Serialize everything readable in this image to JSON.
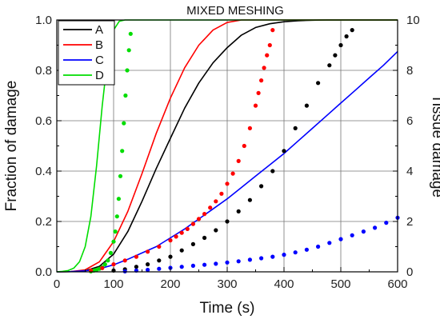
{
  "chart_data": {
    "type": "line",
    "title": "MIXED MESHING",
    "xlabel": "Time (s)",
    "ylabel": "Fraction of damage",
    "y2label": "Tissue damage",
    "xlim": [
      0,
      600
    ],
    "ylim": [
      0,
      1.0
    ],
    "y2lim": [
      0,
      10
    ],
    "xticks": [
      "0",
      "100",
      "200",
      "300",
      "400",
      "500",
      "600"
    ],
    "yticks": [
      "0.0",
      "0.2",
      "0.4",
      "0.6",
      "0.8",
      "1.0"
    ],
    "y2ticks": [
      "0",
      "2",
      "4",
      "6",
      "8",
      "10"
    ],
    "grid": true,
    "legend_position": "top-left",
    "series": [
      {
        "name": "A",
        "color": "#000000",
        "axis": "left",
        "style": "line",
        "x": [
          0,
          25,
          50,
          75,
          100,
          125,
          150,
          175,
          200,
          225,
          250,
          275,
          300,
          325,
          350,
          375,
          400,
          425,
          450,
          475,
          500,
          525,
          550,
          575,
          600
        ],
        "y": [
          0,
          0.001,
          0.004,
          0.022,
          0.07,
          0.16,
          0.28,
          0.41,
          0.53,
          0.65,
          0.75,
          0.83,
          0.89,
          0.94,
          0.97,
          0.985,
          0.993,
          0.997,
          0.999,
          1.0,
          1.0,
          1.0,
          1.0,
          1.0,
          1.0
        ]
      },
      {
        "name": "B",
        "color": "#ff0000",
        "axis": "left",
        "style": "line",
        "x": [
          0,
          25,
          50,
          75,
          100,
          125,
          150,
          175,
          200,
          225,
          250,
          275,
          300,
          325,
          350,
          375,
          400,
          425,
          450,
          475,
          500,
          525,
          550,
          575,
          600
        ],
        "y": [
          0,
          0.001,
          0.008,
          0.04,
          0.12,
          0.24,
          0.39,
          0.55,
          0.69,
          0.81,
          0.9,
          0.96,
          0.99,
          1.0,
          1.0,
          1.0,
          1.0,
          1.0,
          1.0,
          1.0,
          1.0,
          1.0,
          1.0,
          1.0,
          1.0
        ]
      },
      {
        "name": "C",
        "color": "#0000ff",
        "axis": "left",
        "style": "line",
        "x": [
          0,
          25,
          50,
          75,
          100,
          125,
          150,
          175,
          200,
          225,
          250,
          275,
          300,
          325,
          350,
          375,
          400,
          425,
          450,
          475,
          500,
          525,
          550,
          575,
          600
        ],
        "y": [
          0,
          0.001,
          0.004,
          0.012,
          0.028,
          0.05,
          0.075,
          0.1,
          0.135,
          0.17,
          0.21,
          0.25,
          0.29,
          0.335,
          0.38,
          0.425,
          0.47,
          0.52,
          0.57,
          0.62,
          0.67,
          0.72,
          0.77,
          0.82,
          0.875
        ]
      },
      {
        "name": "D",
        "color": "#00dd00",
        "axis": "left",
        "style": "line",
        "x": [
          0,
          10,
          20,
          30,
          40,
          50,
          60,
          70,
          80,
          90,
          100,
          110,
          120,
          130,
          140,
          150,
          200,
          300,
          400,
          500,
          600
        ],
        "y": [
          0,
          0.002,
          0.005,
          0.015,
          0.04,
          0.1,
          0.22,
          0.42,
          0.66,
          0.86,
          0.96,
          0.995,
          1.0,
          1.0,
          1.0,
          1.0,
          1.0,
          1.0,
          1.0,
          1.0,
          1.0
        ]
      },
      {
        "name": "",
        "color": "#00dd00",
        "axis": "right",
        "style": "dots",
        "x": [
          60,
          65,
          70,
          75,
          80,
          85,
          90,
          95,
          100,
          103,
          106,
          109,
          112,
          115,
          118,
          121,
          124,
          127,
          130
        ],
        "y": [
          0.02,
          0.05,
          0.08,
          0.12,
          0.18,
          0.3,
          0.45,
          0.75,
          1.2,
          1.6,
          2.2,
          2.9,
          3.8,
          4.8,
          5.9,
          7.0,
          8.0,
          8.8,
          9.45
        ]
      },
      {
        "name": "",
        "color": "#ff0000",
        "axis": "right",
        "style": "dots",
        "x": [
          60,
          80,
          100,
          120,
          140,
          160,
          180,
          200,
          210,
          220,
          230,
          240,
          250,
          260,
          270,
          280,
          290,
          300,
          310,
          320,
          330,
          340,
          350,
          355,
          360,
          365,
          370,
          375,
          380
        ],
        "y": [
          0.05,
          0.15,
          0.3,
          0.45,
          0.6,
          0.8,
          1.0,
          1.25,
          1.4,
          1.55,
          1.7,
          1.9,
          2.1,
          2.3,
          2.55,
          2.8,
          3.1,
          3.5,
          3.9,
          4.4,
          5.0,
          5.7,
          6.6,
          7.1,
          7.6,
          8.1,
          8.6,
          9.0,
          9.6
        ]
      },
      {
        "name": "",
        "color": "#000000",
        "axis": "right",
        "style": "dots",
        "x": [
          100,
          120,
          140,
          160,
          180,
          200,
          220,
          240,
          260,
          280,
          300,
          320,
          340,
          360,
          380,
          400,
          420,
          440,
          460,
          480,
          490,
          500,
          510,
          520
        ],
        "y": [
          0.05,
          0.1,
          0.2,
          0.3,
          0.45,
          0.6,
          0.85,
          1.1,
          1.35,
          1.65,
          2.0,
          2.4,
          2.85,
          3.4,
          4.0,
          4.8,
          5.7,
          6.6,
          7.5,
          8.2,
          8.6,
          9.0,
          9.35,
          9.6
        ]
      },
      {
        "name": "",
        "color": "#0000ff",
        "axis": "right",
        "style": "dots",
        "x": [
          120,
          140,
          160,
          180,
          200,
          220,
          240,
          260,
          280,
          300,
          320,
          340,
          360,
          380,
          400,
          420,
          440,
          460,
          480,
          500,
          520,
          540,
          560,
          580,
          600
        ],
        "y": [
          0.02,
          0.05,
          0.08,
          0.12,
          0.16,
          0.2,
          0.24,
          0.28,
          0.32,
          0.37,
          0.42,
          0.48,
          0.54,
          0.6,
          0.68,
          0.77,
          0.88,
          1.0,
          1.15,
          1.3,
          1.45,
          1.6,
          1.75,
          1.95,
          2.15
        ]
      }
    ]
  }
}
